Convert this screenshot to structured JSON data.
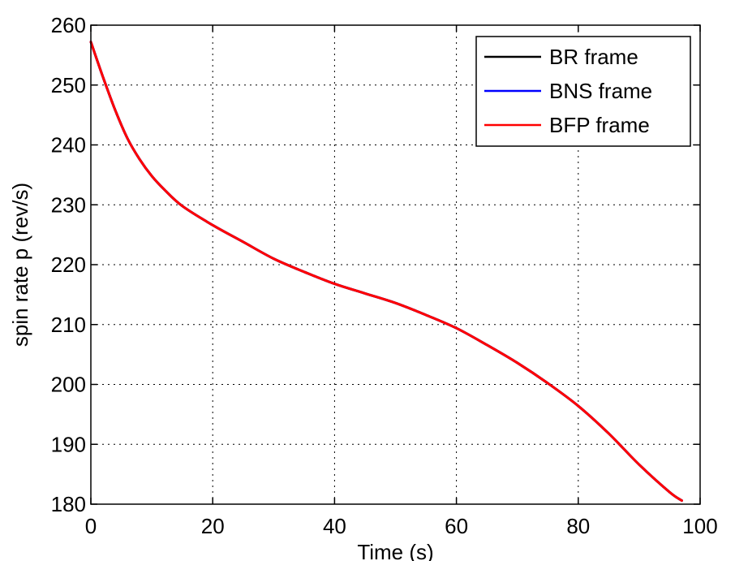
{
  "chart_data": {
    "type": "line",
    "xlabel": "Time (s)",
    "ylabel": "spin rate p (rev/s)",
    "xlim": [
      0,
      100
    ],
    "ylim": [
      180,
      260
    ],
    "xticks": [
      "0",
      "20",
      "40",
      "60",
      "80",
      "100"
    ],
    "yticks": [
      "180",
      "190",
      "200",
      "210",
      "220",
      "230",
      "240",
      "250",
      "260"
    ],
    "grid": true,
    "legend_position": "top-right",
    "x": [
      0,
      2,
      4,
      6,
      8,
      10,
      12,
      15,
      20,
      25,
      30,
      35,
      40,
      45,
      50,
      55,
      60,
      65,
      70,
      75,
      80,
      85,
      90,
      95,
      97
    ],
    "series": [
      {
        "name": "BR frame",
        "color": "#000000",
        "values": [
          257.2,
          251.3,
          245.8,
          241.1,
          237.6,
          234.8,
          232.6,
          229.8,
          226.6,
          223.8,
          221.0,
          218.8,
          216.8,
          215.2,
          213.6,
          211.6,
          209.4,
          206.6,
          203.6,
          200.2,
          196.4,
          191.8,
          186.6,
          182.0,
          180.6
        ]
      },
      {
        "name": "BNS frame",
        "color": "#0000ff",
        "values": [
          257.2,
          251.3,
          245.8,
          241.1,
          237.6,
          234.8,
          232.6,
          229.8,
          226.6,
          223.8,
          221.0,
          218.8,
          216.8,
          215.2,
          213.6,
          211.6,
          209.4,
          206.6,
          203.6,
          200.2,
          196.4,
          191.8,
          186.6,
          182.0,
          180.6
        ]
      },
      {
        "name": "BFP frame",
        "color": "#ff0000",
        "values": [
          257.2,
          251.3,
          245.8,
          241.1,
          237.6,
          234.8,
          232.6,
          229.8,
          226.6,
          223.8,
          221.0,
          218.8,
          216.8,
          215.2,
          213.6,
          211.6,
          209.4,
          206.6,
          203.6,
          200.2,
          196.4,
          191.8,
          186.6,
          182.0,
          180.6
        ]
      }
    ]
  }
}
